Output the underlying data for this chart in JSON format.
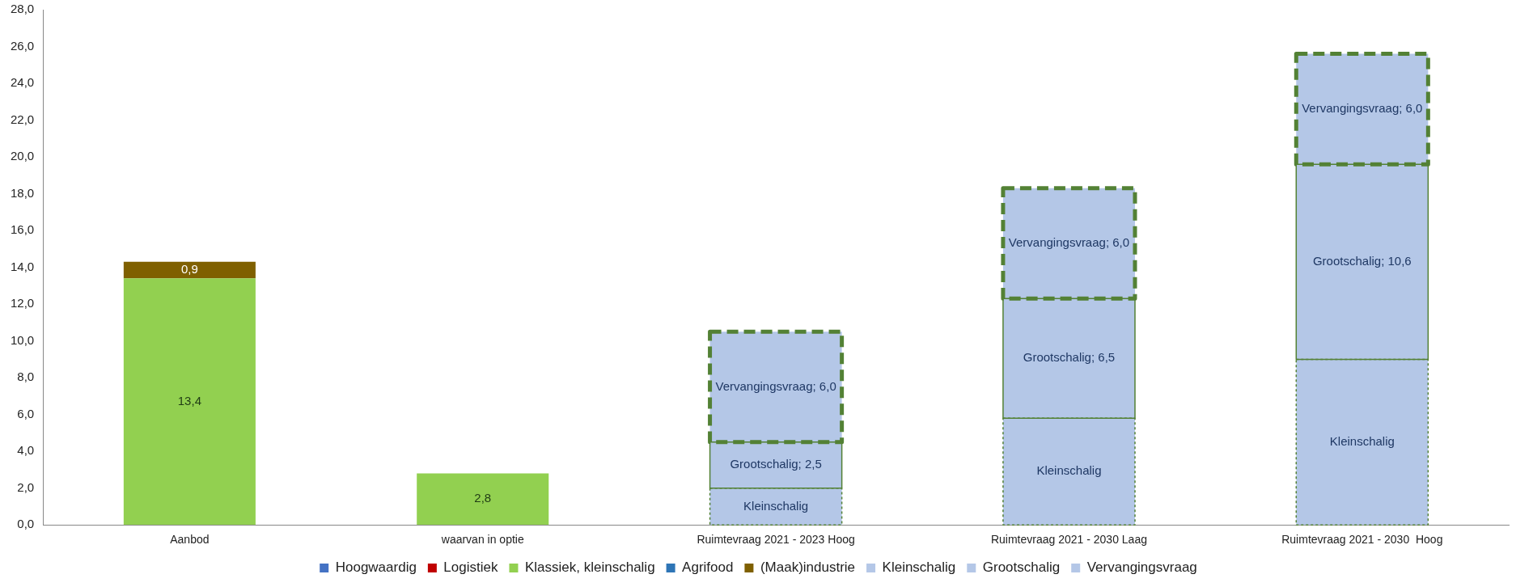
{
  "chart_data": {
    "type": "bar",
    "stacked": true,
    "grid": false,
    "legend": "bottom",
    "categories": [
      "Aanbod",
      "waarvan in optie",
      "Ruimtevraag 2021 - 2023 Hoog",
      "Ruimtevraag 2021 - 2030 Laag",
      "Ruimtevraag 2021 - 2030  Hoog"
    ],
    "ylim": [
      0,
      28
    ],
    "yticks": [
      {
        "value": 0,
        "label": "0,0"
      },
      {
        "value": 2,
        "label": "2,0"
      },
      {
        "value": 4,
        "label": "4,0"
      },
      {
        "value": 6,
        "label": "6,0"
      },
      {
        "value": 8,
        "label": "8,0"
      },
      {
        "value": 10,
        "label": "10,0"
      },
      {
        "value": 12,
        "label": "12,0"
      },
      {
        "value": 14,
        "label": "14,0"
      },
      {
        "value": 16,
        "label": "16,0"
      },
      {
        "value": 18,
        "label": "18,0"
      },
      {
        "value": 20,
        "label": "20,0"
      },
      {
        "value": 22,
        "label": "22,0"
      },
      {
        "value": 24,
        "label": "24,0"
      },
      {
        "value": 26,
        "label": "26,0"
      },
      {
        "value": 28,
        "label": "28,0"
      }
    ],
    "series": [
      {
        "name": "Hoogwaardig",
        "color": "#4472c4",
        "values": [
          null,
          null,
          null,
          null,
          null
        ]
      },
      {
        "name": "Logistiek",
        "color": "#c00000",
        "values": [
          null,
          null,
          null,
          null,
          null
        ]
      },
      {
        "name": "Klassiek, kleinschalig",
        "color": "#92d050",
        "values": [
          13.4,
          2.8,
          null,
          null,
          null
        ],
        "value_labels": [
          "13,4",
          "2,8",
          null,
          null,
          null
        ]
      },
      {
        "name": "Agrifood",
        "color": "#2e75b6",
        "values": [
          null,
          null,
          null,
          null,
          null
        ]
      },
      {
        "name": "(Maak)industrie",
        "color": "#7f6000",
        "values": [
          0.9,
          null,
          null,
          null,
          null
        ],
        "value_labels": [
          "0,9",
          null,
          null,
          null,
          null
        ]
      },
      {
        "name": "Kleinschalig",
        "color": "#b4c7e7",
        "line_style": "dotted",
        "values": [
          null,
          null,
          2.0,
          5.8,
          9.0
        ],
        "value_labels": [
          null,
          null,
          "Kleinschalig",
          "Kleinschalig",
          "Kleinschalig"
        ]
      },
      {
        "name": "Grootschalig",
        "color": "#b4c7e7",
        "line_style": "solid",
        "values": [
          null,
          null,
          2.5,
          6.5,
          10.6
        ],
        "value_labels": [
          null,
          null,
          "Grootschalig; 2,5",
          "Grootschalig; 6,5",
          "Grootschalig; 10,6"
        ]
      },
      {
        "name": "Vervangingsvraag",
        "color": "#b4c7e7",
        "line_style": "dashed",
        "values": [
          null,
          null,
          6.0,
          6.0,
          6.0
        ],
        "value_labels": [
          null,
          null,
          "Vervangingsvraag; 6,0",
          "Vervangingsvraag; 6,0",
          "Vervangingsvraag; 6,0"
        ]
      }
    ]
  }
}
